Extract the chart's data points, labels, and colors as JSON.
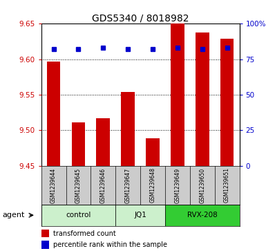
{
  "title": "GDS5340 / 8018982",
  "samples": [
    "GSM1239644",
    "GSM1239645",
    "GSM1239646",
    "GSM1239647",
    "GSM1239648",
    "GSM1239649",
    "GSM1239650",
    "GSM1239651"
  ],
  "groups": [
    {
      "name": "control",
      "indices": [
        0,
        1,
        2
      ],
      "color": "#ccf0cc"
    },
    {
      "name": "JQ1",
      "indices": [
        3,
        4
      ],
      "color": "#ccf0cc"
    },
    {
      "name": "RVX-208",
      "indices": [
        5,
        6,
        7
      ],
      "color": "#33cc33"
    }
  ],
  "red_values": [
    9.597,
    9.511,
    9.517,
    9.554,
    9.489,
    9.651,
    9.638,
    9.629
  ],
  "blue_values_pct": [
    82,
    82,
    83,
    82,
    82,
    83,
    82,
    83
  ],
  "ylim_left": [
    9.45,
    9.65
  ],
  "ylim_right": [
    0,
    100
  ],
  "yticks_left": [
    9.45,
    9.5,
    9.55,
    9.6,
    9.65
  ],
  "yticks_right": [
    0,
    25,
    50,
    75,
    100
  ],
  "ytick_labels_right": [
    "0",
    "25",
    "50",
    "75",
    "100%"
  ],
  "red_color": "#cc0000",
  "blue_color": "#0000cc",
  "bar_width": 0.55,
  "legend_red": "transformed count",
  "legend_blue": "percentile rank within the sample",
  "agent_label": "agent",
  "sample_box_color": "#cccccc",
  "grid_linestyle": "dotted"
}
